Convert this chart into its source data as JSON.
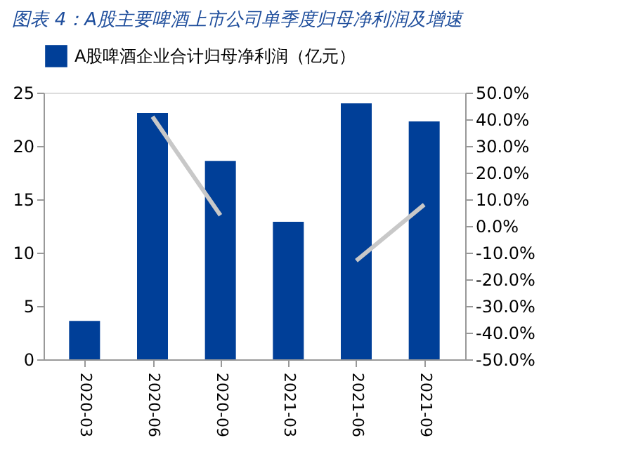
{
  "chart_data": {
    "type": "bar",
    "title": "图表 4：A股主要啤酒上市公司单季度归母净利润及增速",
    "categories": [
      "2020-03",
      "2020-06",
      "2020-09",
      "2021-03",
      "2021-06",
      "2021-09"
    ],
    "series": [
      {
        "name": "A股啤酒企业合计归母净利润（亿元）",
        "color": "#003f98",
        "values": [
          3.6,
          23.1,
          18.6,
          12.9,
          24.0,
          22.3
        ]
      },
      {
        "type": "line",
        "axis": "y2",
        "color": "#c8c8c8",
        "values": [
          null,
          41,
          4,
          null,
          -13,
          8
        ]
      }
    ],
    "ylim": [
      0,
      25
    ],
    "yticks": [
      0,
      5,
      10,
      15,
      20,
      25
    ],
    "y2lim": [
      -50,
      50
    ],
    "y2ticks": [
      {
        "value": -50,
        "label": "-50.0%"
      },
      {
        "value": -40,
        "label": "-40.0%"
      },
      {
        "value": -30,
        "label": "-30.0%"
      },
      {
        "value": -20,
        "label": "-20.0%"
      },
      {
        "value": -10,
        "label": "-10.0%"
      },
      {
        "value": 0,
        "label": "0.0%"
      },
      {
        "value": 10,
        "label": "10.0%"
      },
      {
        "value": 20,
        "label": "20.0%"
      },
      {
        "value": 30,
        "label": "30.0%"
      },
      {
        "value": 40,
        "label": "40.0%"
      },
      {
        "value": 50,
        "label": "50.0%"
      }
    ],
    "legend": "top",
    "grid": false
  }
}
